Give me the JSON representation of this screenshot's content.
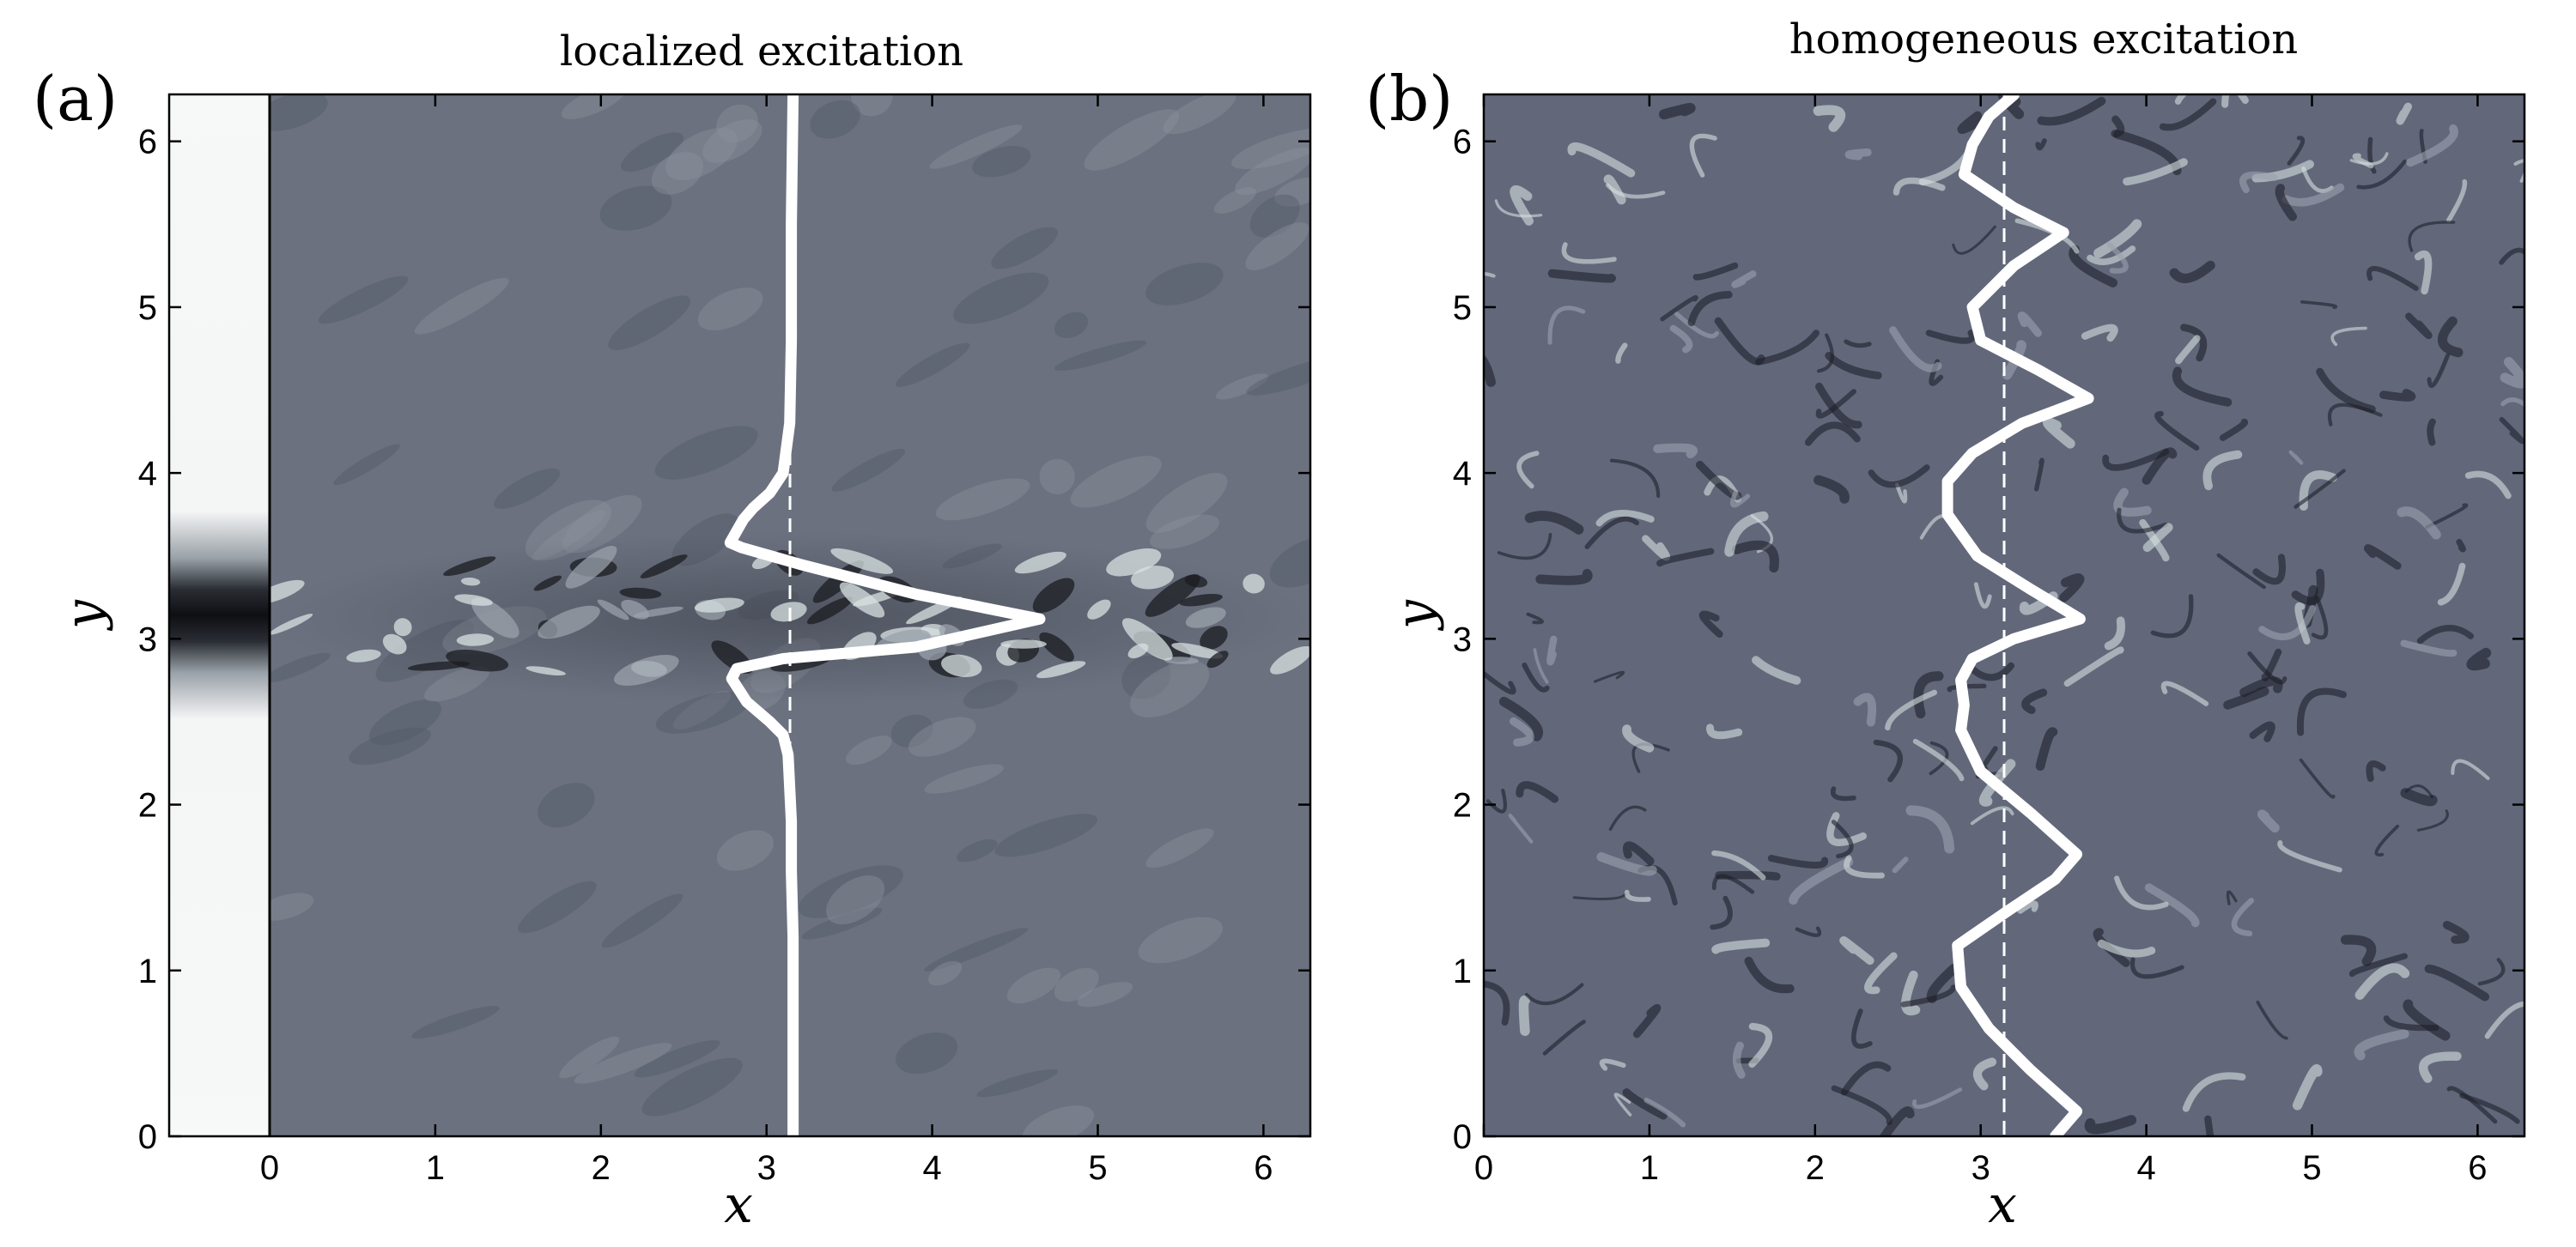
{
  "chart_data": [
    {
      "type": "heatmap",
      "panel_label": "(a)",
      "title": "localized excitation",
      "xlabel": "x",
      "ylabel": "y",
      "xlim": [
        0,
        6.283
      ],
      "ylim": [
        0,
        6.283
      ],
      "xticks": [
        0,
        1,
        2,
        3,
        4,
        5,
        6
      ],
      "yticks": [
        0,
        1,
        2,
        3,
        4,
        5,
        6
      ],
      "xtick_labels": [
        "0",
        "1",
        "2",
        "3",
        "4",
        "5",
        "6"
      ],
      "ytick_labels": [
        "0",
        "1",
        "2",
        "3",
        "4",
        "5",
        "6"
      ],
      "side_strip": {
        "x_range": [
          -0.6,
          0
        ],
        "peak_y": 3.14,
        "half_width_y": 0.3
      },
      "reference_line_x": 3.1416,
      "profile": {
        "x": [
          3.16,
          3.16,
          3.16,
          3.15,
          3.15,
          3.14,
          3.13,
          3.1,
          3.02,
          2.88,
          2.79,
          2.82,
          3.1,
          3.9,
          4.65,
          3.9,
          3.2,
          2.85,
          2.78,
          2.82,
          2.86,
          2.92,
          3.02,
          3.1,
          3.14,
          3.15,
          3.15,
          3.16
        ],
        "y": [
          0.0,
          0.6,
          1.2,
          1.6,
          1.9,
          2.1,
          2.3,
          2.42,
          2.5,
          2.62,
          2.76,
          2.82,
          2.88,
          2.95,
          3.12,
          3.27,
          3.45,
          3.55,
          3.58,
          3.65,
          3.72,
          3.79,
          3.88,
          4.0,
          4.3,
          4.8,
          5.5,
          6.28
        ]
      }
    },
    {
      "type": "heatmap",
      "panel_label": "(b)",
      "title": "homogeneous excitation",
      "xlabel": "x",
      "ylabel": "y",
      "xlim": [
        0,
        6.283
      ],
      "ylim": [
        0,
        6.283
      ],
      "xticks": [
        0,
        1,
        2,
        3,
        4,
        5,
        6
      ],
      "yticks": [
        0,
        1,
        2,
        3,
        4,
        5,
        6
      ],
      "xtick_labels": [
        "0",
        "1",
        "2",
        "3",
        "4",
        "5",
        "6"
      ],
      "ytick_labels": [
        "0",
        "1",
        "2",
        "3",
        "4",
        "5",
        "6"
      ],
      "reference_line_x": 3.1416,
      "profile": {
        "x": [
          3.45,
          3.58,
          3.3,
          3.05,
          2.88,
          2.86,
          3.15,
          3.45,
          3.58,
          3.3,
          3.0,
          2.88,
          2.9,
          2.88,
          2.95,
          3.2,
          3.6,
          3.3,
          2.98,
          2.8,
          2.8,
          2.95,
          3.25,
          3.65,
          3.35,
          3.0,
          2.95,
          3.2,
          3.5,
          3.2,
          2.9,
          2.95,
          3.05,
          3.2
        ],
        "y": [
          0.0,
          0.15,
          0.4,
          0.65,
          0.9,
          1.15,
          1.35,
          1.55,
          1.7,
          1.95,
          2.2,
          2.45,
          2.6,
          2.75,
          2.88,
          3.0,
          3.12,
          3.3,
          3.5,
          3.75,
          3.95,
          4.12,
          4.3,
          4.45,
          4.62,
          4.8,
          5.0,
          5.25,
          5.45,
          5.6,
          5.8,
          5.98,
          6.15,
          6.28
        ]
      }
    }
  ],
  "colors": {
    "background": "#ffffff",
    "field_base": "#6b717f",
    "field_dark": "#1f2028",
    "field_light": "#e2eaea",
    "curve": "#ffffff",
    "axis": "#000000"
  }
}
